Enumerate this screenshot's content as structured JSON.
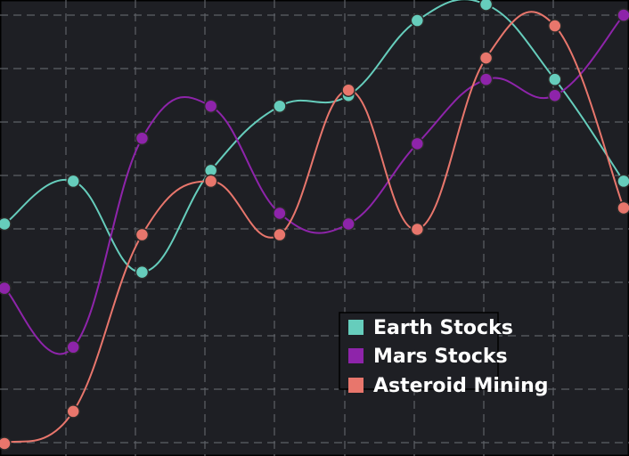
{
  "colors": {
    "background": "#1e1f24",
    "grid": "#5d6066",
    "legend_border": "#000000"
  },
  "chart_data": {
    "type": "line",
    "title": "",
    "xlabel": "",
    "ylabel": "",
    "grid": true,
    "legend_position": "bottom-right",
    "x": [
      0,
      1,
      2,
      3,
      4,
      5,
      6,
      7,
      8,
      9
    ],
    "xlim": [
      0,
      9
    ],
    "ylim": [
      0,
      8.2
    ],
    "series": [
      {
        "name": "Earth Stocks",
        "color": "#66cdbc",
        "values": [
          4.1,
          4.9,
          3.2,
          5.1,
          6.3,
          6.5,
          7.9,
          8.2,
          6.8,
          4.9
        ]
      },
      {
        "name": "Mars Stocks",
        "color": "#8e24aa",
        "values": [
          2.9,
          1.8,
          5.7,
          6.3,
          4.3,
          4.1,
          5.6,
          6.8,
          6.5,
          8.0
        ]
      },
      {
        "name": "Asteroid Mining",
        "color": "#e8766c",
        "values": [
          0.0,
          0.6,
          3.9,
          4.9,
          3.9,
          6.6,
          4.0,
          7.2,
          7.8,
          4.4
        ]
      }
    ]
  }
}
